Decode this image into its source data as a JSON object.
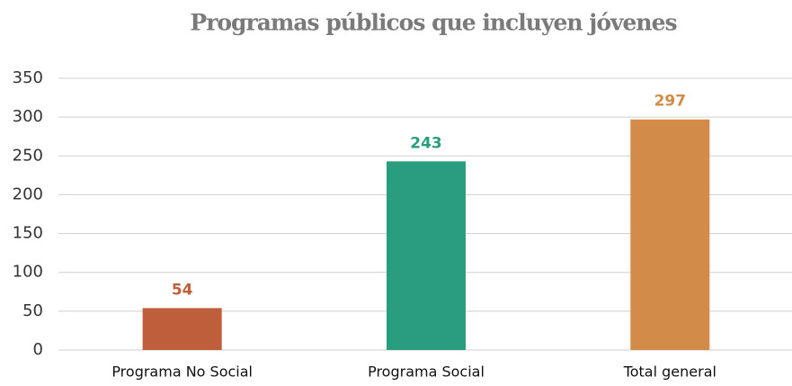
{
  "chart_data": {
    "type": "bar",
    "title": "Programas públicos que incluyen jóvenes",
    "categories": [
      "Programa No Social",
      "Programa Social",
      "Total general"
    ],
    "values": [
      54,
      243,
      297
    ],
    "colors": [
      "#bf5e3b",
      "#2a9d7f",
      "#d38b4a"
    ],
    "ylim": [
      0,
      350
    ],
    "yticks": [
      0,
      50,
      100,
      150,
      200,
      250,
      300,
      350
    ],
    "grid": true,
    "data_labels": true
  }
}
